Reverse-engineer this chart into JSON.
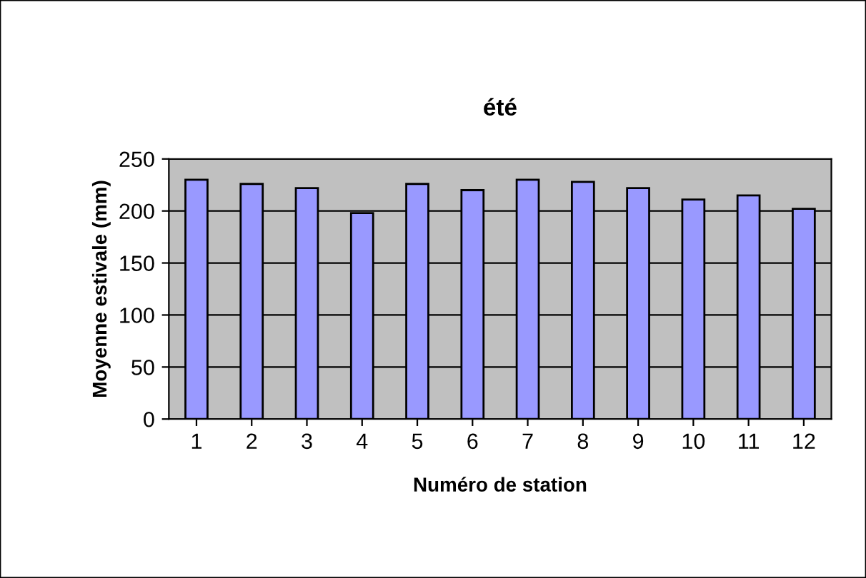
{
  "chart_data": {
    "type": "bar",
    "title": "été",
    "xlabel": "Numéro de station",
    "ylabel": "Moyenne estivale (mm)",
    "categories": [
      "1",
      "2",
      "3",
      "4",
      "5",
      "6",
      "7",
      "8",
      "9",
      "10",
      "11",
      "12"
    ],
    "values": [
      230,
      226,
      222,
      198,
      226,
      220,
      230,
      228,
      222,
      211,
      215,
      202
    ],
    "color": "#9999ff",
    "ylim": [
      0,
      250
    ],
    "yticks": [
      0,
      50,
      100,
      150,
      200,
      250
    ],
    "grid": "y"
  }
}
